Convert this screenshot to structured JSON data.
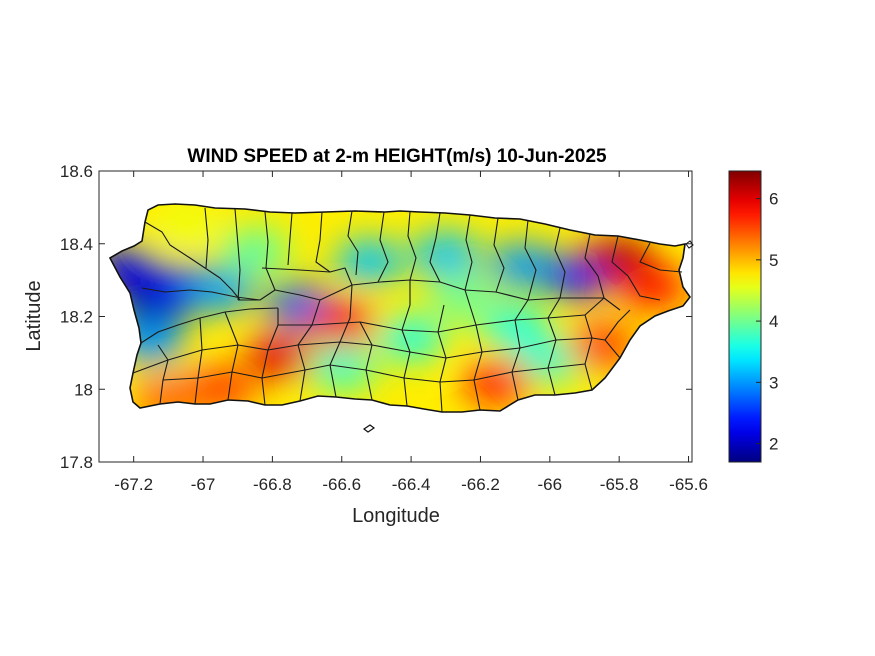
{
  "chart_data": {
    "type": "heatmap",
    "title": "WIND SPEED at 2-m HEIGHT(m/s) 10-Jun-2025",
    "xlabel": "Longitude",
    "ylabel": "Latitude",
    "xlim": [
      -67.3,
      -65.59
    ],
    "ylim": [
      17.8,
      18.6
    ],
    "xticks": [
      -67.2,
      -67,
      -66.8,
      -66.6,
      -66.4,
      -66.2,
      -66,
      -65.8,
      -65.6
    ],
    "xtick_labels": [
      "-67.2",
      "-67",
      "-66.8",
      "-66.6",
      "-66.4",
      "-66.2",
      "-66",
      "-65.8",
      "-65.6"
    ],
    "yticks": [
      17.8,
      18,
      18.2,
      18.4,
      18.6
    ],
    "ytick_labels": [
      "17.8",
      "18",
      "18.2",
      "18.4",
      "18.6"
    ],
    "colorbar": {
      "range": [
        1.7,
        6.45
      ],
      "ticks": [
        2,
        3,
        4,
        5,
        6
      ],
      "tick_labels": [
        "2",
        "3",
        "4",
        "5",
        "6"
      ],
      "colormap": "jet"
    },
    "grid": false,
    "field_blobs": [
      {
        "lon": -67.15,
        "lat": 18.22,
        "value": 1.8
      },
      {
        "lon": -67.22,
        "lat": 18.33,
        "value": 2.2
      },
      {
        "lon": -67.05,
        "lat": 18.28,
        "value": 2.4
      },
      {
        "lon": -66.95,
        "lat": 18.27,
        "value": 3.0
      },
      {
        "lon": -67.15,
        "lat": 18.13,
        "value": 3.0
      },
      {
        "lon": -66.72,
        "lat": 18.23,
        "value": 2.7
      },
      {
        "lon": -66.52,
        "lat": 18.35,
        "value": 3.2
      },
      {
        "lon": -66.3,
        "lat": 18.37,
        "value": 3.2
      },
      {
        "lon": -66.08,
        "lat": 18.34,
        "value": 3.0
      },
      {
        "lon": -65.92,
        "lat": 18.31,
        "value": 2.4
      },
      {
        "lon": -66.6,
        "lat": 18.06,
        "value": 3.7
      },
      {
        "lon": -66.4,
        "lat": 18.14,
        "value": 3.6
      },
      {
        "lon": -66.25,
        "lat": 18.25,
        "value": 4.0
      },
      {
        "lon": -66.1,
        "lat": 18.17,
        "value": 3.6
      },
      {
        "lon": -66.0,
        "lat": 18.08,
        "value": 3.7
      },
      {
        "lon": -66.85,
        "lat": 18.38,
        "value": 3.9
      },
      {
        "lon": -67.05,
        "lat": 18.45,
        "value": 4.6
      },
      {
        "lon": -65.8,
        "lat": 18.36,
        "value": 6.2
      },
      {
        "lon": -65.7,
        "lat": 18.28,
        "value": 5.8
      },
      {
        "lon": -66.78,
        "lat": 18.09,
        "value": 6.0
      },
      {
        "lon": -66.6,
        "lat": 18.18,
        "value": 5.9
      },
      {
        "lon": -66.15,
        "lat": 18.02,
        "value": 5.8
      },
      {
        "lon": -66.95,
        "lat": 18.0,
        "value": 5.6
      },
      {
        "lon": -67.1,
        "lat": 17.97,
        "value": 5.4
      },
      {
        "lon": -65.85,
        "lat": 18.12,
        "value": 5.6
      }
    ],
    "background_value": 4.75
  }
}
